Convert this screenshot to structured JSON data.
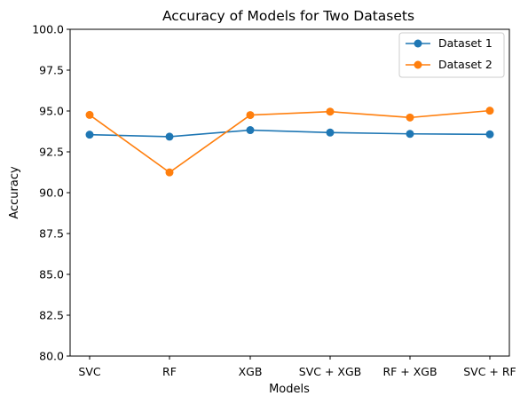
{
  "chart_data": {
    "type": "line",
    "title": "Accuracy of Models for Two Datasets",
    "xlabel": "Models",
    "ylabel": "Accuracy",
    "categories": [
      "SVC",
      "RF",
      "XGB",
      "SVC + XGB",
      "RF + XGB",
      "SVC + RF"
    ],
    "ylim": [
      80.0,
      100.0
    ],
    "yticks": [
      "80.0",
      "82.5",
      "85.0",
      "87.5",
      "90.0",
      "92.5",
      "95.0",
      "97.5",
      "100.0"
    ],
    "grid": false,
    "legend_position": "top-right",
    "series": [
      {
        "name": "Dataset 1",
        "color": "#1f77b4",
        "values": [
          93.55,
          93.43,
          93.83,
          93.68,
          93.6,
          93.57
        ]
      },
      {
        "name": "Dataset 2",
        "color": "#ff7f0e",
        "values": [
          94.76,
          91.24,
          94.75,
          94.96,
          94.6,
          95.02
        ]
      }
    ]
  }
}
